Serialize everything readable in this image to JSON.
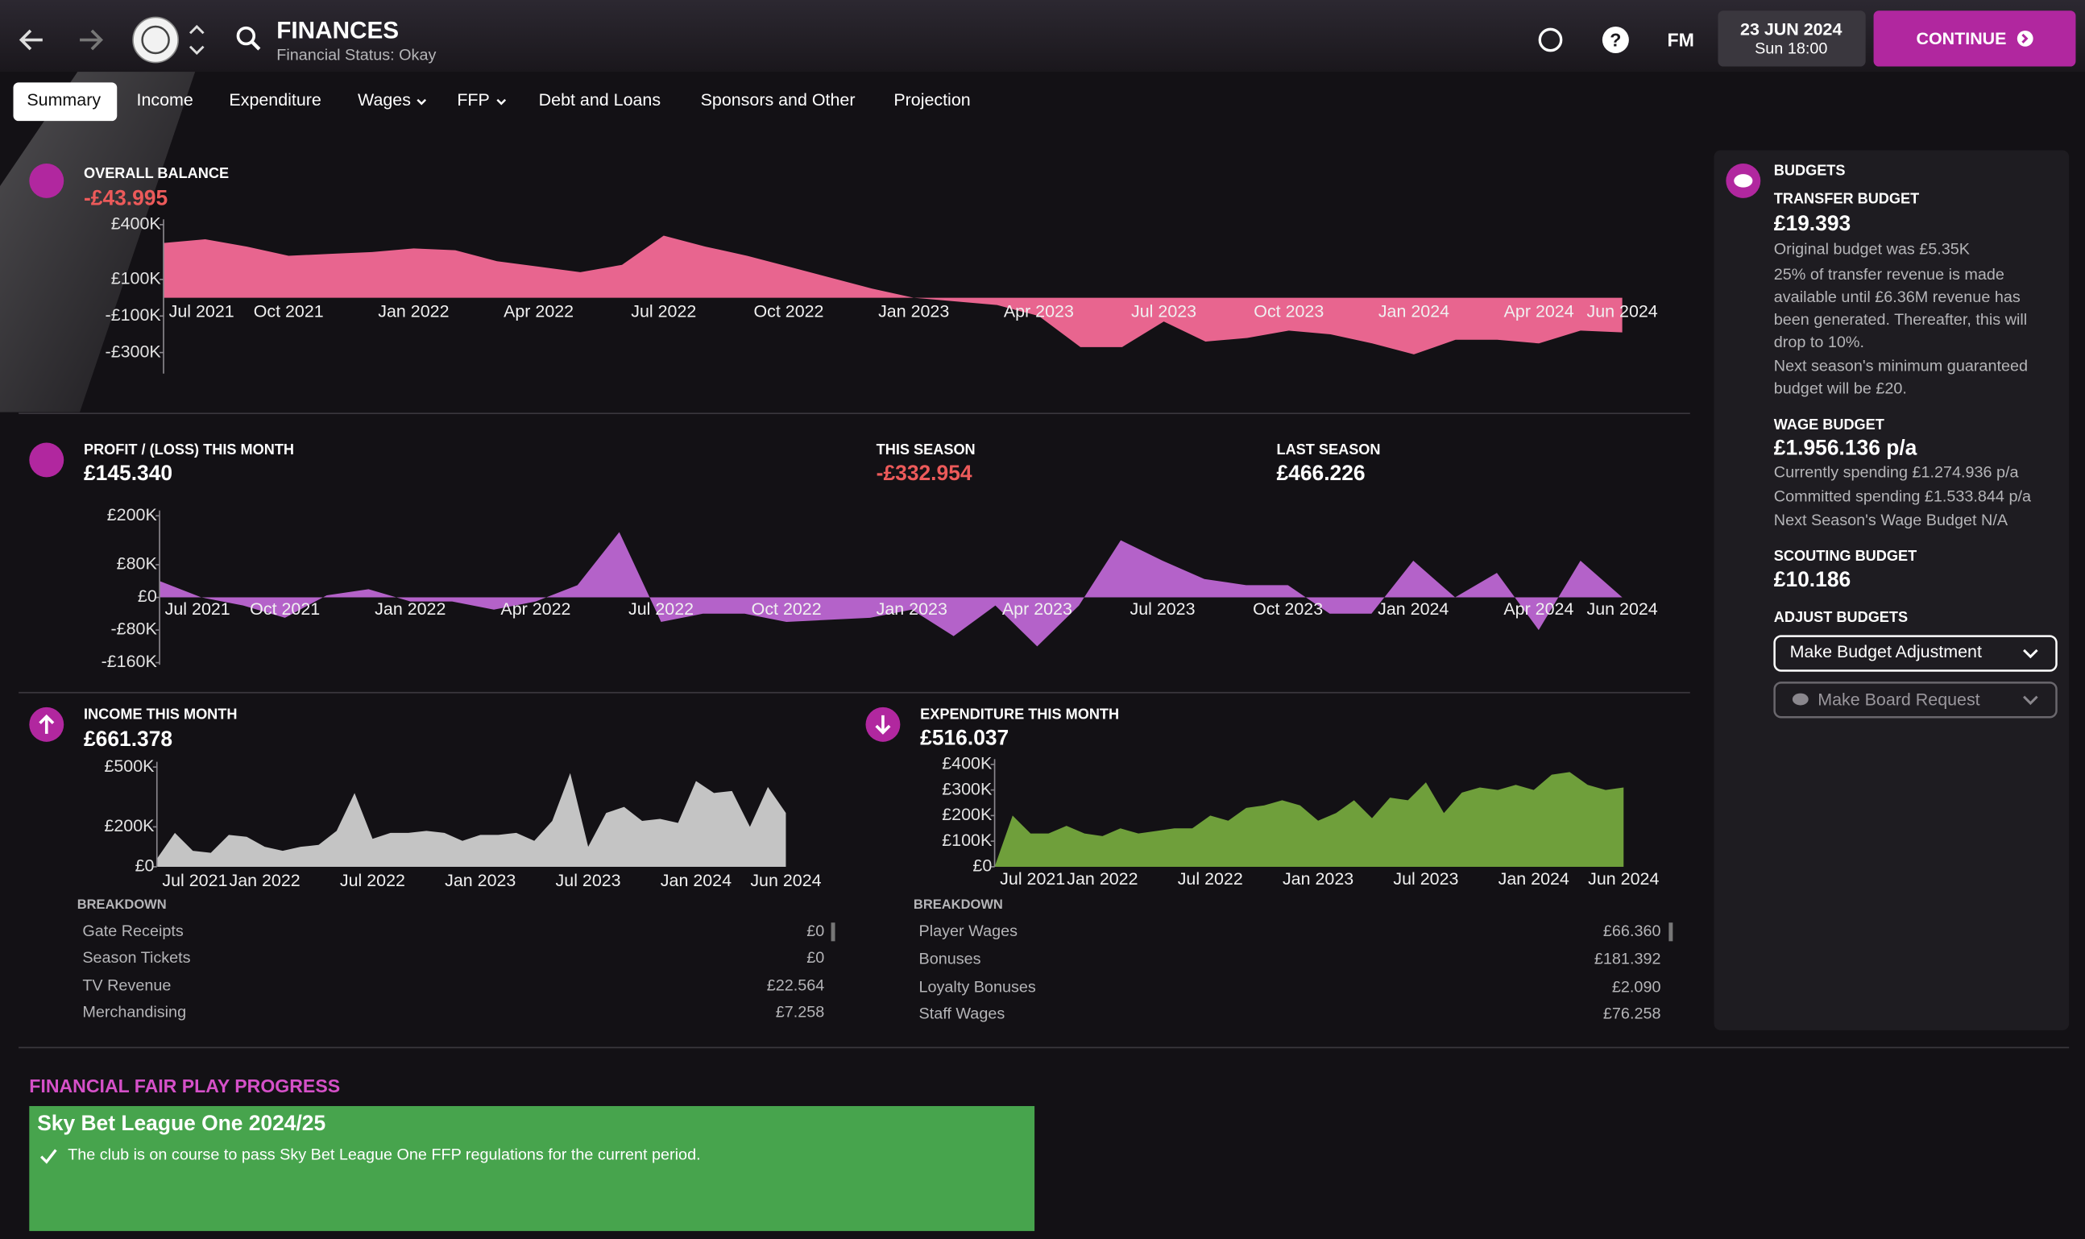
{
  "header": {
    "title": "FINANCES",
    "subtitle": "Financial Status: Okay",
    "fm": "FM",
    "help": "?",
    "date": "23 JUN 2024",
    "time": "Sun 18:00",
    "continue": "CONTINUE"
  },
  "tabs": [
    "Summary",
    "Income",
    "Expenditure",
    "Wages",
    "FFP",
    "Debt and Loans",
    "Sponsors and Other",
    "Projection"
  ],
  "balance": {
    "label": "OVERALL BALANCE",
    "value": "-£43.995",
    "chart": {
      "type": "area",
      "color": "#e8658f",
      "categories": [
        "Jul 2021",
        null,
        null,
        "Oct 2021",
        null,
        null,
        "Jan 2022",
        null,
        null,
        "Apr 2022",
        null,
        null,
        "Jul 2022",
        null,
        null,
        "Oct 2022",
        null,
        null,
        "Jan 2023",
        null,
        null,
        "Apr 2023",
        null,
        null,
        "Jul 2023",
        null,
        null,
        "Oct 2023",
        null,
        null,
        "Jan 2024",
        null,
        null,
        "Apr 2024",
        null,
        "Jun 2024"
      ],
      "values": [
        300000,
        320000,
        280000,
        230000,
        240000,
        250000,
        270000,
        260000,
        200000,
        170000,
        140000,
        180000,
        340000,
        280000,
        230000,
        170000,
        110000,
        50000,
        0,
        -20000,
        -40000,
        -100000,
        -270000,
        -270000,
        -130000,
        -240000,
        -220000,
        -180000,
        -200000,
        -250000,
        -310000,
        -230000,
        -230000,
        -250000,
        -180000,
        -190000
      ],
      "ylim": [
        -415000,
        400000
      ],
      "yticks": [
        {
          "value": 400000,
          "label": "£400K"
        },
        {
          "value": 100000,
          "label": "£100K"
        },
        {
          "value": -100000,
          "label": "-£100K"
        },
        {
          "value": -300000,
          "label": "-£300K"
        }
      ]
    }
  },
  "profit": {
    "label": "PROFIT / (LOSS) THIS MONTH",
    "value": "£145.340",
    "this_season_label": "THIS SEASON",
    "this_season": "-£332.954",
    "last_season_label": "LAST SEASON",
    "last_season": "£466.226",
    "chart": {
      "type": "area",
      "color": "#b462c9",
      "categories": [
        "Jul 2021",
        null,
        null,
        "Oct 2021",
        null,
        null,
        "Jan 2022",
        null,
        null,
        "Apr 2022",
        null,
        null,
        "Jul 2022",
        null,
        null,
        "Oct 2022",
        null,
        null,
        "Jan 2023",
        null,
        null,
        "Apr 2023",
        null,
        null,
        "Jul 2023",
        null,
        null,
        "Oct 2023",
        null,
        null,
        "Jan 2024",
        null,
        null,
        "Apr 2024",
        null,
        "Jun 2024"
      ],
      "values": [
        40000,
        0,
        -20000,
        -50000,
        5000,
        20000,
        -10000,
        -10000,
        -30000,
        -10000,
        30000,
        160000,
        -60000,
        -40000,
        -40000,
        -60000,
        -55000,
        -50000,
        -30000,
        -95000,
        -20000,
        -120000,
        -20000,
        140000,
        90000,
        45000,
        30000,
        30000,
        -40000,
        -40000,
        90000,
        0,
        60000,
        -80000,
        90000,
        0
      ],
      "ylim": [
        -165000,
        200000
      ],
      "yticks": [
        {
          "value": 200000,
          "label": "£200K"
        },
        {
          "value": 80000,
          "label": "£80K"
        },
        {
          "value": 0,
          "label": "£0"
        },
        {
          "value": -80000,
          "label": "-£80K"
        },
        {
          "value": -160000,
          "label": "-£160K"
        }
      ]
    }
  },
  "income": {
    "label": "INCOME THIS MONTH",
    "value": "£661.378",
    "breakdown_label": "BREAKDOWN",
    "breakdown": [
      [
        "Gate Receipts",
        "£0"
      ],
      [
        "Season Tickets",
        "£0"
      ],
      [
        "TV Revenue",
        "£22.564"
      ],
      [
        "Merchandising",
        "£7.258"
      ]
    ],
    "chart": {
      "type": "area",
      "color": "#c4c4c4",
      "categories": [
        "Jul 2021",
        null,
        null,
        null,
        null,
        null,
        "Jan 2022",
        null,
        null,
        null,
        null,
        null,
        "Jul 2022",
        null,
        null,
        null,
        null,
        null,
        "Jan 2023",
        null,
        null,
        null,
        null,
        null,
        "Jul 2023",
        null,
        null,
        null,
        null,
        null,
        "Jan 2024",
        null,
        null,
        null,
        null,
        "Jun 2024"
      ],
      "values": [
        40000,
        170000,
        80000,
        70000,
        160000,
        150000,
        100000,
        80000,
        100000,
        110000,
        180000,
        370000,
        140000,
        170000,
        170000,
        180000,
        170000,
        130000,
        160000,
        160000,
        170000,
        130000,
        230000,
        470000,
        100000,
        270000,
        300000,
        230000,
        240000,
        220000,
        430000,
        370000,
        380000,
        200000,
        400000,
        270000
      ],
      "ylim": [
        0,
        500000
      ],
      "yticks": [
        {
          "value": 500000,
          "label": "£500K"
        },
        {
          "value": 200000,
          "label": "£200K"
        },
        {
          "value": 0,
          "label": "£0"
        }
      ]
    }
  },
  "expenditure": {
    "label": "EXPENDITURE THIS MONTH",
    "value": "£516.037",
    "breakdown_label": "BREAKDOWN",
    "breakdown": [
      [
        "Player Wages",
        "£66.360"
      ],
      [
        "Bonuses",
        "£181.392"
      ],
      [
        "Loyalty Bonuses",
        "£2.090"
      ],
      [
        "Staff Wages",
        "£76.258"
      ]
    ],
    "chart": {
      "type": "area",
      "color": "#6f9f3b",
      "categories": [
        "Jul 2021",
        null,
        null,
        null,
        null,
        null,
        "Jan 2022",
        null,
        null,
        null,
        null,
        null,
        "Jul 2022",
        null,
        null,
        null,
        null,
        null,
        "Jan 2023",
        null,
        null,
        null,
        null,
        null,
        "Jul 2023",
        null,
        null,
        null,
        null,
        null,
        "Jan 2024",
        null,
        null,
        null,
        null,
        "Jun 2024"
      ],
      "values": [
        0,
        200000,
        130000,
        130000,
        160000,
        130000,
        120000,
        150000,
        130000,
        140000,
        150000,
        150000,
        200000,
        180000,
        230000,
        240000,
        260000,
        240000,
        180000,
        210000,
        260000,
        190000,
        270000,
        260000,
        330000,
        210000,
        290000,
        310000,
        300000,
        320000,
        300000,
        360000,
        370000,
        320000,
        300000,
        310000
      ],
      "ylim": [
        0,
        400000
      ],
      "yticks": [
        {
          "value": 400000,
          "label": "£400K"
        },
        {
          "value": 300000,
          "label": "£300K"
        },
        {
          "value": 200000,
          "label": "£200K"
        },
        {
          "value": 100000,
          "label": "£100K"
        },
        {
          "value": 0,
          "label": "£0"
        }
      ]
    }
  },
  "budgets": {
    "title": "BUDGETS",
    "transfer_label": "TRANSFER BUDGET",
    "transfer_value": "£19.393",
    "transfer_notes": [
      "Original budget was £5.35K",
      "25% of transfer revenue is made",
      "available until £6.36M revenue has",
      "been generated. Thereafter, this will",
      "drop to 10%.",
      "Next season's minimum guaranteed",
      "budget will be £20."
    ],
    "wage_label": "WAGE BUDGET",
    "wage_value": "£1.956.136 p/a",
    "wage_notes": [
      "Currently spending £1.274.936 p/a",
      "Committed spending £1.533.844 p/a",
      "Next Season's Wage Budget N/A"
    ],
    "scouting_label": "SCOUTING BUDGET",
    "scouting_value": "£10.186",
    "adjust_label": "ADJUST BUDGETS",
    "adjust_button": "Make Budget Adjustment",
    "board_button": "Make Board Request"
  },
  "ffp": {
    "title": "FINANCIAL FAIR PLAY PROGRESS",
    "heading": "Sky Bet League One 2024/25",
    "message": "The club is on course to pass Sky Bet League One FFP regulations for the current period."
  }
}
